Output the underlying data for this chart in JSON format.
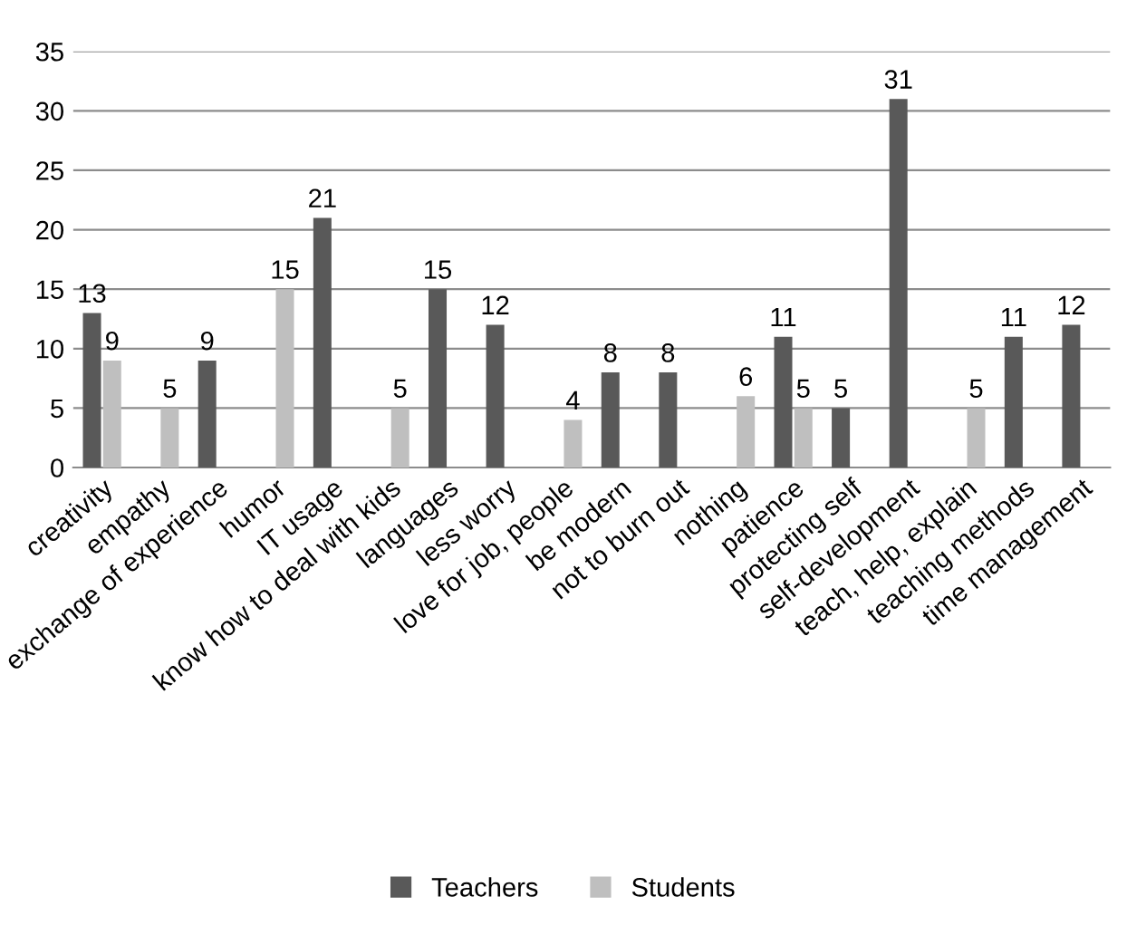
{
  "chart_data": {
    "type": "bar",
    "categories": [
      "creativity",
      "empathy",
      "exchange of experience",
      "humor",
      "IT usage",
      "know how to deal with kids",
      "languages",
      "less worry",
      "love for job, people",
      "be modern",
      "not to burn out",
      "nothing",
      "patience",
      "protecting self",
      "self-development",
      "teach, help, explain",
      "teaching methods",
      "time management"
    ],
    "series": [
      {
        "name": "Teachers",
        "color": "#595959",
        "values": [
          13,
          null,
          9,
          null,
          21,
          null,
          15,
          12,
          null,
          8,
          8,
          null,
          11,
          5,
          31,
          null,
          11,
          12
        ]
      },
      {
        "name": "Students",
        "color": "#bfbfbf",
        "values": [
          9,
          5,
          null,
          15,
          null,
          5,
          null,
          null,
          4,
          null,
          null,
          6,
          5,
          null,
          null,
          5,
          null,
          null
        ]
      }
    ],
    "ylim": [
      0,
      35
    ],
    "yticks": [
      0,
      5,
      10,
      15,
      20,
      25,
      30,
      35
    ],
    "grid": "y",
    "legend": "bottom",
    "data_labels": true
  }
}
